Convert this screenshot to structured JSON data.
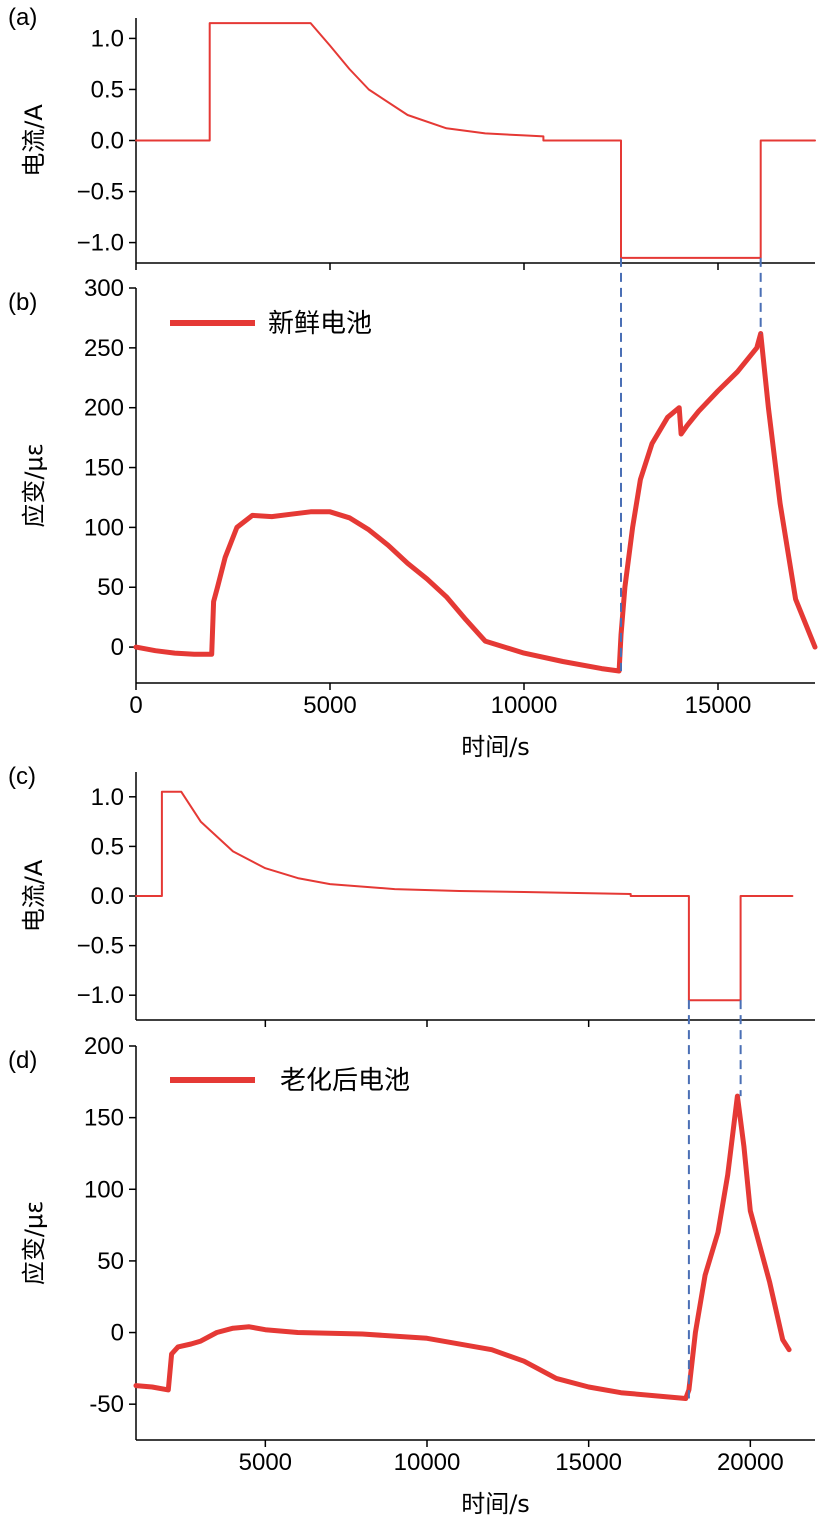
{
  "chart_data": [
    {
      "panel": "(a)",
      "type": "line",
      "ylabel": "电流/A",
      "xlim": [
        0,
        17500
      ],
      "ylim": [
        -1.2,
        1.2
      ],
      "yticks": [
        1.0,
        0.5,
        0.0,
        -0.5,
        -1.0
      ],
      "ytick_labels": [
        "1.0",
        "0.5",
        "0.0",
        "−0.5",
        "−1.0"
      ],
      "xticks": [
        0,
        5000,
        10000,
        15000
      ],
      "color": "#e53935",
      "x": [
        0,
        1900,
        1900,
        2000,
        3000,
        4500,
        5000,
        5500,
        6000,
        7000,
        8000,
        9000,
        10000,
        10500,
        10500,
        12500,
        12500,
        16100,
        16100,
        17500
      ],
      "y": [
        0,
        0,
        1.15,
        1.15,
        1.15,
        1.15,
        0.93,
        0.7,
        0.5,
        0.25,
        0.12,
        0.07,
        0.05,
        0.04,
        0.0,
        0.0,
        -1.15,
        -1.15,
        0,
        0
      ]
    },
    {
      "panel": "(b)",
      "type": "line",
      "ylabel": "应变/με",
      "xlabel": "时间/s",
      "xlim": [
        0,
        17500
      ],
      "ylim": [
        -30,
        300
      ],
      "yticks": [
        300,
        250,
        200,
        150,
        100,
        50,
        0
      ],
      "xticks": [
        0,
        5000,
        10000,
        15000
      ],
      "legend": "新鲜电池",
      "color": "#e53935",
      "x": [
        0,
        500,
        1000,
        1500,
        1950,
        2000,
        2100,
        2300,
        2600,
        3000,
        3500,
        4000,
        4500,
        5000,
        5500,
        6000,
        6500,
        7000,
        7500,
        8000,
        8500,
        9000,
        9500,
        10000,
        11000,
        12000,
        12450,
        12500,
        12600,
        12800,
        13000,
        13300,
        13700,
        14000,
        14050,
        14200,
        14500,
        15000,
        15500,
        16000,
        16100,
        16300,
        16600,
        17000,
        17500
      ],
      "y": [
        0,
        -3,
        -5,
        -6,
        -6,
        38,
        50,
        75,
        100,
        110,
        109,
        111,
        113,
        113,
        108,
        98,
        85,
        70,
        57,
        42,
        23,
        5,
        0,
        -5,
        -12,
        -18,
        -20,
        10,
        50,
        100,
        140,
        170,
        192,
        200,
        178,
        185,
        197,
        214,
        230,
        250,
        262,
        200,
        120,
        40,
        0
      ]
    },
    {
      "panel": "(c)",
      "type": "line",
      "ylabel": "电流/A",
      "xlim": [
        0,
        21000
      ],
      "ylim": [
        -1.25,
        1.25
      ],
      "yticks": [
        1.0,
        0.5,
        0.0,
        -0.5,
        -1.0
      ],
      "ytick_labels": [
        "1.0",
        "0.5",
        "0.0",
        "−0.5",
        "−1.0"
      ],
      "xticks": [
        4000,
        9000,
        14000
      ],
      "color": "#e53935",
      "x": [
        0,
        800,
        800,
        1400,
        2000,
        3000,
        4000,
        5000,
        6000,
        8000,
        10000,
        12000,
        15300,
        15300,
        17100,
        17100,
        18700,
        18700,
        20300
      ],
      "y": [
        0,
        0,
        1.05,
        1.05,
        0.75,
        0.45,
        0.28,
        0.18,
        0.12,
        0.07,
        0.05,
        0.04,
        0.02,
        0.0,
        0.0,
        -1.05,
        -1.05,
        0,
        0
      ]
    },
    {
      "panel": "(d)",
      "type": "line",
      "ylabel": "应变/με",
      "xlabel": "时间/s",
      "xlim": [
        1000,
        22000
      ],
      "ylim": [
        -75,
        200
      ],
      "yticks": [
        200,
        150,
        100,
        50,
        0,
        -50
      ],
      "xticks": [
        5000,
        10000,
        15000,
        20000
      ],
      "legend": "老化后电池",
      "color": "#e53935",
      "x": [
        1000,
        1500,
        2000,
        2100,
        2300,
        2700,
        3000,
        3500,
        4000,
        4500,
        5000,
        6000,
        8000,
        10000,
        12000,
        13000,
        14000,
        15000,
        16000,
        17000,
        18000,
        18100,
        18300,
        18600,
        19000,
        19300,
        19600,
        19800,
        20000,
        20300,
        20600,
        21000,
        21200
      ],
      "y": [
        -37,
        -38,
        -40,
        -15,
        -10,
        -8,
        -6,
        0,
        3,
        4,
        2,
        0,
        -1,
        -4,
        -12,
        -20,
        -32,
        -38,
        -42,
        -44,
        -46,
        -40,
        0,
        40,
        70,
        110,
        165,
        130,
        85,
        60,
        35,
        -5,
        -12
      ]
    }
  ]
}
